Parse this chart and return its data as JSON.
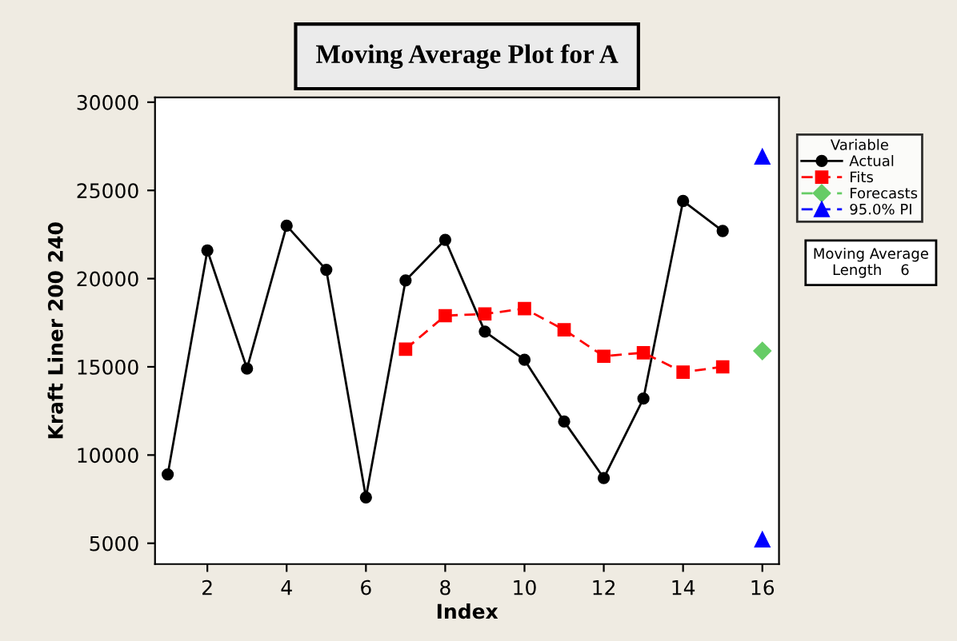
{
  "chart_data": {
    "type": "line",
    "title": "Moving Average Plot for A",
    "xlabel": "Index",
    "ylabel": "Kraft Liner 200 240",
    "legend_title": "Variable",
    "legend": "right",
    "annotations": [
      "Moving Average\nLength    6"
    ],
    "xlim": [
      0.68,
      16.42
    ],
    "ylim": [
      3820,
      30270
    ],
    "xticks": [
      2,
      4,
      6,
      8,
      10,
      12,
      14,
      16
    ],
    "yticks": [
      5000,
      10000,
      15000,
      20000,
      25000,
      30000
    ],
    "grid": false,
    "series": [
      {
        "name": "Actual",
        "color": "#000000",
        "marker": "circle",
        "line_style": "solid",
        "x": [
          1,
          2,
          3,
          4,
          5,
          6,
          7,
          8,
          9,
          10,
          11,
          12,
          13,
          14,
          15
        ],
        "values": [
          8900,
          21600,
          14900,
          23000,
          20500,
          7600,
          19900,
          22200,
          17000,
          15400,
          11900,
          8700,
          13200,
          24400,
          22700
        ]
      },
      {
        "name": "Fits",
        "color": "#ff0000",
        "marker": "square",
        "line_style": "dashed",
        "x": [
          7,
          8,
          9,
          10,
          11,
          12,
          13,
          14,
          15
        ],
        "values": [
          16000,
          17900,
          18000,
          18300,
          17100,
          15600,
          15800,
          14700,
          15000
        ]
      },
      {
        "name": "Forecasts",
        "color": "#66cc66",
        "marker": "diamond",
        "line_style": "dashed",
        "x": [
          16
        ],
        "values": [
          15900
        ]
      },
      {
        "name": "95.0% PI",
        "color": "#0000ff",
        "marker": "triangle",
        "line_style": "dashed",
        "type": "scatter",
        "x": [
          16,
          16
        ],
        "values": [
          26900,
          5200
        ]
      }
    ]
  }
}
